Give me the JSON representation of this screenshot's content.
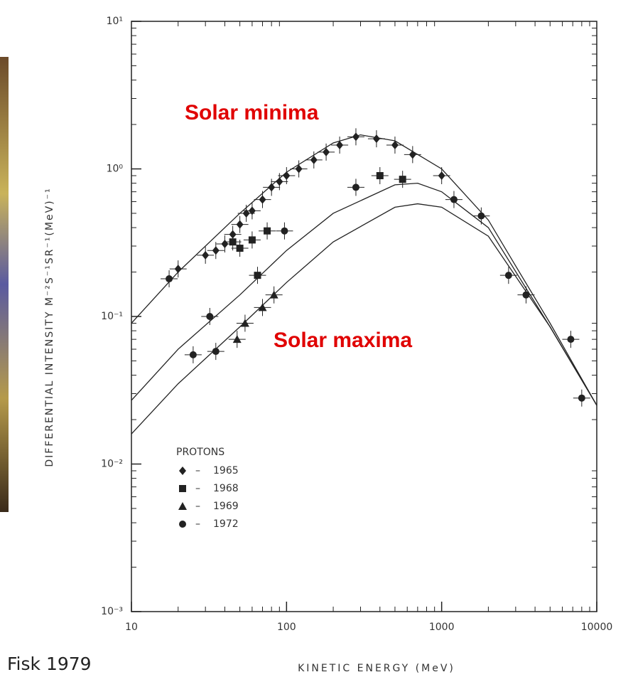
{
  "chart_data": {
    "type": "scatter",
    "y_label": "DIFFERENTIAL INTENSITY M⁻²S⁻¹SR⁻¹(MeV)⁻¹",
    "x_label": "KINETIC ENERGY (MeV)",
    "annotations": [
      "Solar minima",
      "Solar maxima"
    ],
    "annotation_color": "#e00000",
    "credit": "Fisk 1979",
    "legend_title": "PROTONS",
    "legend_dash": "–",
    "x_log": true,
    "y_log": true,
    "xlim": [
      10,
      10000
    ],
    "ylim": [
      0.001,
      10
    ],
    "xticks": [
      10,
      100,
      1000,
      10000
    ],
    "yticks": [
      {
        "value": 10,
        "label": "10¹"
      },
      {
        "value": 1,
        "label": "10⁰"
      },
      {
        "value": 0.1,
        "label": "10⁻¹"
      },
      {
        "value": 0.01,
        "label": "10⁻²"
      },
      {
        "value": 0.001,
        "label": "10⁻³"
      }
    ],
    "color": "#222222",
    "series": [
      {
        "name": "1965",
        "marker": "diamond",
        "color": "#222222",
        "x": [
          20,
          30,
          35,
          40,
          45,
          50,
          55,
          60,
          70,
          80,
          90,
          100,
          120,
          150,
          180,
          220,
          280,
          380,
          500,
          650,
          1000
        ],
        "values": [
          0.21,
          0.26,
          0.28,
          0.31,
          0.36,
          0.42,
          0.5,
          0.52,
          0.62,
          0.75,
          0.82,
          0.9,
          1.0,
          1.15,
          1.3,
          1.45,
          1.65,
          1.6,
          1.45,
          1.25,
          0.9
        ]
      },
      {
        "name": "1968",
        "marker": "square",
        "color": "#222222",
        "x": [
          45,
          50,
          60,
          75,
          65,
          400,
          560
        ],
        "values": [
          0.32,
          0.29,
          0.33,
          0.38,
          0.19,
          0.9,
          0.85
        ]
      },
      {
        "name": "1969",
        "marker": "triangle",
        "color": "#222222",
        "x": [
          48,
          54,
          70,
          83
        ],
        "values": [
          0.07,
          0.09,
          0.115,
          0.14
        ]
      },
      {
        "name": "1972",
        "marker": "circle",
        "color": "#222222",
        "x": [
          17.5,
          25,
          32,
          35,
          97,
          280,
          1200,
          1800,
          2700,
          3500,
          6800,
          8000
        ],
        "values": [
          0.18,
          0.055,
          0.1,
          0.058,
          0.38,
          0.75,
          0.62,
          0.48,
          0.19,
          0.14,
          0.07,
          0.028
        ]
      }
    ],
    "curves": [
      {
        "x": [
          10,
          20,
          50,
          100,
          200,
          300,
          500,
          1000,
          2000,
          3000,
          5000,
          10000
        ],
        "values": [
          0.09,
          0.2,
          0.5,
          0.95,
          1.5,
          1.7,
          1.55,
          1.0,
          0.45,
          0.22,
          0.09,
          0.025
        ]
      },
      {
        "x": [
          10,
          20,
          50,
          100,
          200,
          500,
          700,
          1000,
          2000,
          5000,
          10000
        ],
        "values": [
          0.027,
          0.06,
          0.14,
          0.28,
          0.5,
          0.78,
          0.8,
          0.7,
          0.4,
          0.085,
          0.025
        ]
      },
      {
        "x": [
          10,
          20,
          50,
          100,
          200,
          500,
          700,
          1000,
          2000,
          5000,
          10000
        ],
        "values": [
          0.016,
          0.035,
          0.085,
          0.17,
          0.32,
          0.55,
          0.58,
          0.55,
          0.35,
          0.085,
          0.025
        ]
      }
    ]
  }
}
